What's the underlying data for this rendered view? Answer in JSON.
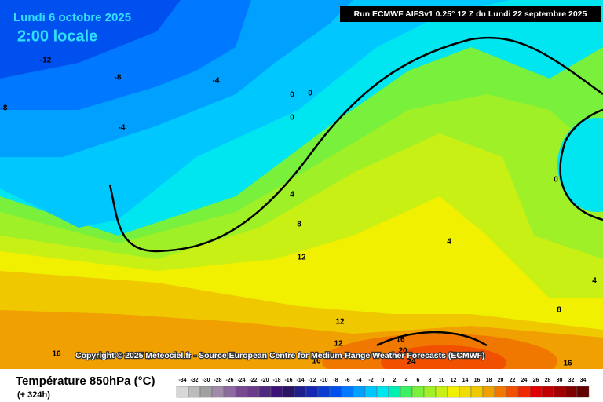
{
  "header": {
    "date": "Lundi 6 octobre 2025",
    "time": "2:00 locale",
    "run": "Run ECMWF AIFSv1 0.25° 12 Z du Lundi 22 septembre 2025"
  },
  "map": {
    "contour_labels": [
      -12,
      -8,
      -4,
      -8,
      -4,
      0,
      0,
      0,
      4,
      8,
      12,
      4,
      0,
      4,
      16,
      12,
      12,
      16,
      16,
      20,
      24,
      16,
      8
    ],
    "copyright": "Copyright © 2025 Meteociel.fr - Source European Centre for Medium-Range Weather Forecasts (ECMWF)"
  },
  "legend": {
    "title": "Température 850hPa (°C)",
    "lead": "(+ 324h)",
    "scale": [
      -34,
      -32,
      -30,
      -28,
      -26,
      -24,
      -22,
      -20,
      -18,
      -16,
      -14,
      -12,
      -10,
      -8,
      -6,
      -4,
      -2,
      0,
      2,
      4,
      6,
      8,
      10,
      12,
      14,
      16,
      18,
      20,
      22,
      24,
      26,
      28,
      30,
      32,
      34
    ],
    "colors": [
      "#d8d8d8",
      "#bcbcbc",
      "#a0a0a0",
      "#a08ca8",
      "#8c6ca0",
      "#784890",
      "#6c3c8c",
      "#502880",
      "#3c1478",
      "#2c1464",
      "#20208c",
      "#1428b4",
      "#0a3cd2",
      "#0050f0",
      "#0078ff",
      "#00a0ff",
      "#00c8ff",
      "#00e6f0",
      "#00f0b4",
      "#3cf064",
      "#78f03c",
      "#a0f028",
      "#c8f014",
      "#f0f000",
      "#f0dc00",
      "#f0c800",
      "#f0a000",
      "#f07800",
      "#f05000",
      "#f02800",
      "#e00000",
      "#c00000",
      "#a00000",
      "#800000",
      "#600000"
    ]
  }
}
